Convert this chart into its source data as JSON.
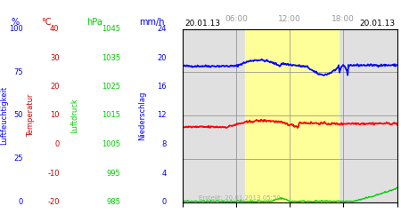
{
  "title_left": "20.01.13",
  "title_right": "20.01.13",
  "footer": "Erstellt: 20.01.2013 05:50",
  "time_labels": [
    "06:00",
    "12:00",
    "18:00"
  ],
  "ylabel_left1": "Luftfeuchtigkeit",
  "ylabel_left2": "Temperatur",
  "ylabel_left3": "Luftdruck",
  "ylabel_right": "Niederschlag",
  "unit_pct": "%",
  "unit_temp": "°C",
  "unit_hpa": "hPa",
  "unit_mm": "mm/h",
  "color_pct": "blue",
  "color_temp": "#cc0000",
  "color_hpa": "#00cc00",
  "color_mm": "blue",
  "color_blue_line": "blue",
  "color_red_line": "red",
  "color_green_line": "#00cc00",
  "bg_gray": "#e0e0e0",
  "bg_yellow": "#ffff99",
  "bg_white": "#ffffff",
  "grid_color": "#888888",
  "pct_ticks": [
    0,
    25,
    50,
    75,
    100
  ],
  "temp_ticks": [
    -20,
    -10,
    0,
    10,
    20,
    30,
    40
  ],
  "hpa_ticks": [
    985,
    995,
    1005,
    1015,
    1025,
    1035,
    1045
  ],
  "mm_ticks": [
    0,
    4,
    8,
    12,
    16,
    20,
    24
  ],
  "fig_width": 4.5,
  "fig_height": 2.5,
  "dpi": 100
}
